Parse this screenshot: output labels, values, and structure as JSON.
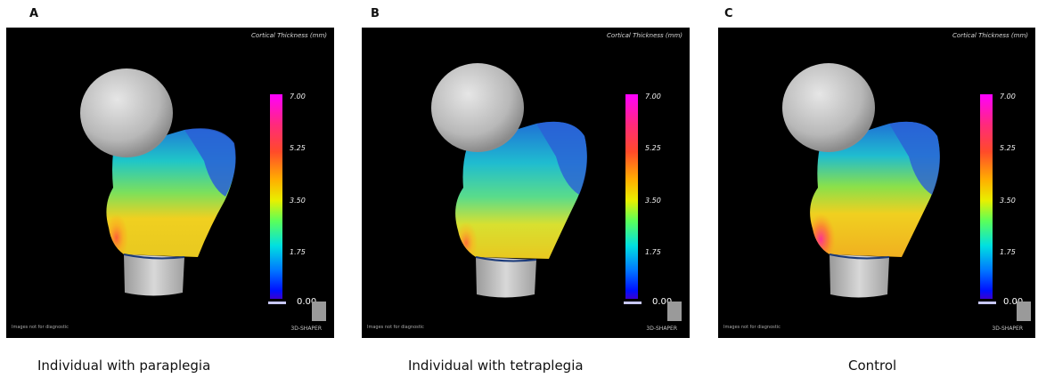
{
  "panels": [
    {
      "letter": "A",
      "viewer_title": "Cortical Thickness (mm)",
      "scale_labels": [
        "7.00",
        "5.25",
        "3.50",
        "1.75",
        "0.00"
      ],
      "caption": "Individual with paraplegia",
      "software_label": "3D-SHAPER",
      "watermark": "Images not for diagnostic"
    },
    {
      "letter": "B",
      "viewer_title": "Cortical Thickness (mm)",
      "scale_labels": [
        "7.00",
        "5.25",
        "3.50",
        "1.75",
        "0.00"
      ],
      "caption": "Individual with tetraplegia",
      "software_label": "3D-SHAPER",
      "watermark": "Images not for diagnostic"
    },
    {
      "letter": "C",
      "viewer_title": "Cortical Thickness (mm)",
      "scale_labels": [
        "7.00",
        "5.25",
        "3.50",
        "1.75",
        "0.00"
      ],
      "caption": "Control",
      "software_label": "3D-SHAPER",
      "watermark": "Images not for diagnostic"
    }
  ],
  "colors": {
    "scale_top": "#ff00ff",
    "scale_bottom": "#0010ff",
    "viewer_bg": "#000000",
    "bone_head": "#c8c8c8"
  }
}
